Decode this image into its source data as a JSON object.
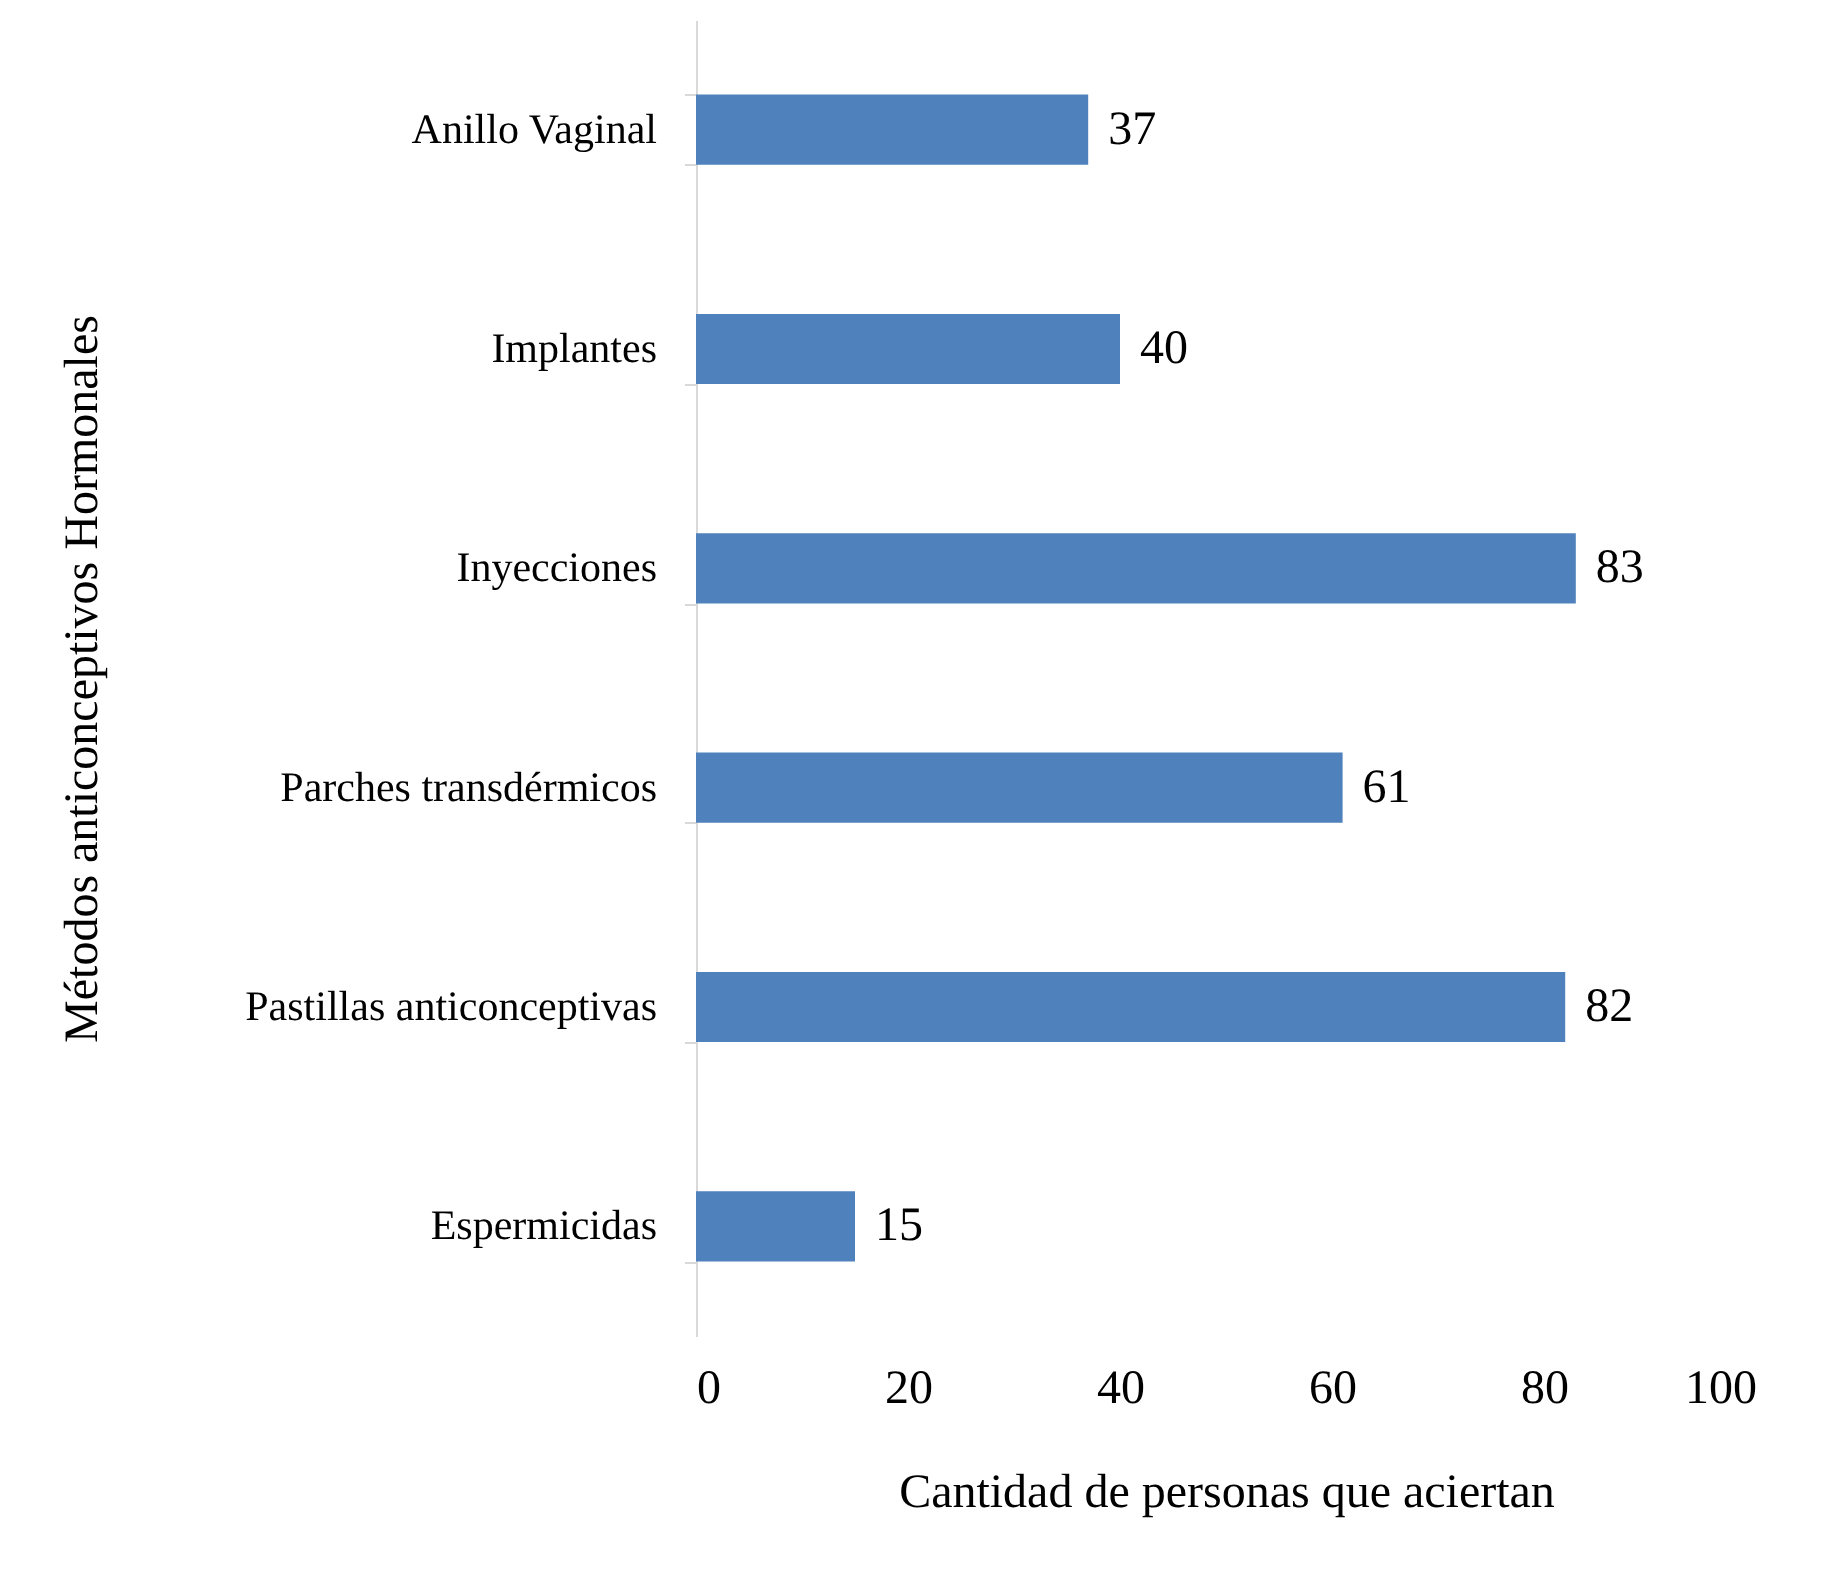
{
  "chart_data": {
    "type": "bar",
    "orientation": "horizontal",
    "xlabel": "Cantidad de personas que aciertan",
    "ylabel": "Métodos anticonceptivos Hormonales",
    "categories": [
      "Anillo Vaginal",
      "Implantes",
      "Inyecciones",
      "Parches transdérmicos",
      "Pastillas anticonceptivas",
      "Espermicidas"
    ],
    "values": [
      37,
      40,
      83,
      61,
      82,
      15
    ],
    "color": "#4f81bd",
    "xlim": [
      0,
      100
    ],
    "xticks": [
      0,
      20,
      40,
      60,
      80,
      100
    ],
    "grid": false,
    "data_labels": true
  }
}
